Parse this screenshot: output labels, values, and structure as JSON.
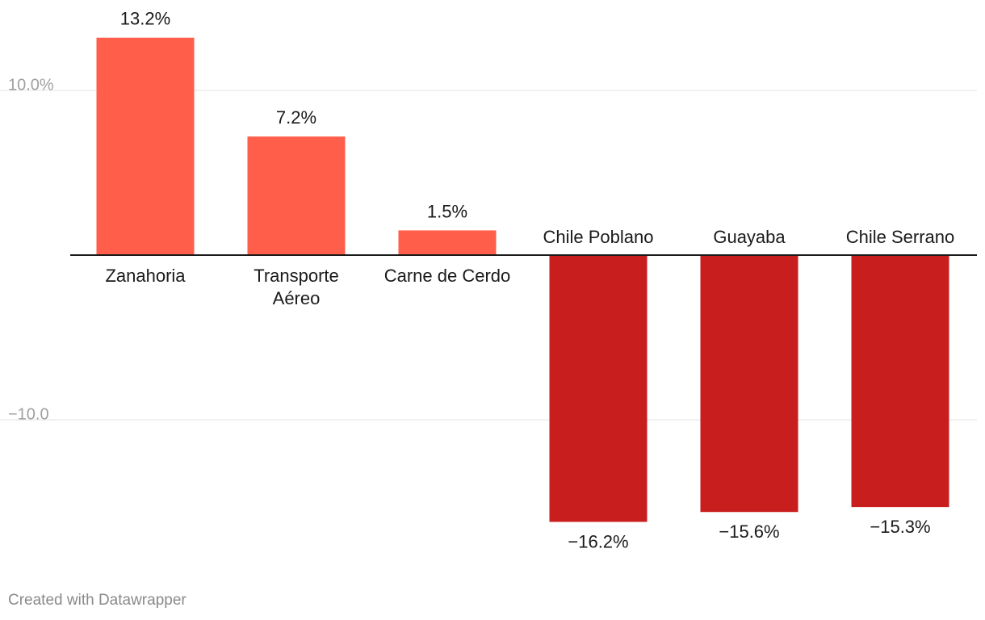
{
  "chart_data": {
    "type": "bar",
    "categories": [
      "Zanahoria",
      "Transporte Aéreo",
      "Carne de Cerdo",
      "Chile Poblano",
      "Guayaba",
      "Chile Serrano"
    ],
    "category_lines": [
      [
        "Zanahoria"
      ],
      [
        "Transporte",
        "Aéreo"
      ],
      [
        "Carne de Cerdo"
      ],
      [
        "Chile Poblano"
      ],
      [
        "Guayaba"
      ],
      [
        "Chile Serrano"
      ]
    ],
    "values": [
      13.2,
      7.2,
      1.5,
      -16.2,
      -15.6,
      -15.3
    ],
    "value_labels": [
      "13.2%",
      "7.2%",
      "1.5%",
      "−16.2%",
      "−15.6%",
      "−15.3%"
    ],
    "yticks": [
      10,
      -10
    ],
    "ytick_labels": [
      "10.0%",
      "−10.0"
    ],
    "ylim": [
      -19.4,
      15.5
    ],
    "grid": true,
    "colors": {
      "positive": "#ff5e4b",
      "negative": "#c81e1e",
      "grid": "#e3e3e3",
      "baseline": "#1a1a1a"
    }
  },
  "footer": {
    "credit": "Created with Datawrapper"
  }
}
